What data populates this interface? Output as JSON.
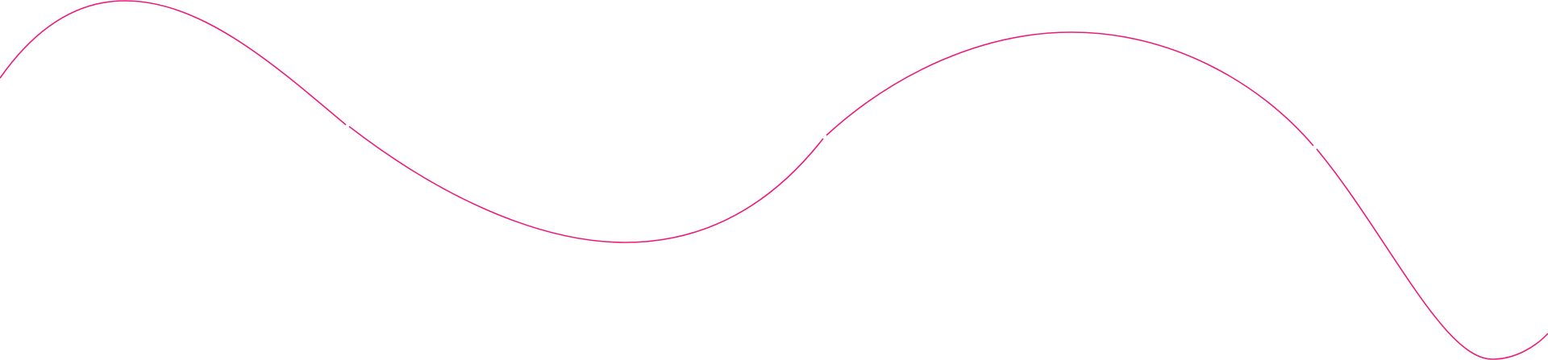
{
  "decoration": {
    "type": "wavy-line",
    "segments": 4,
    "colors": {
      "stroke": "#e91e7a",
      "background": "#ffffff"
    }
  }
}
